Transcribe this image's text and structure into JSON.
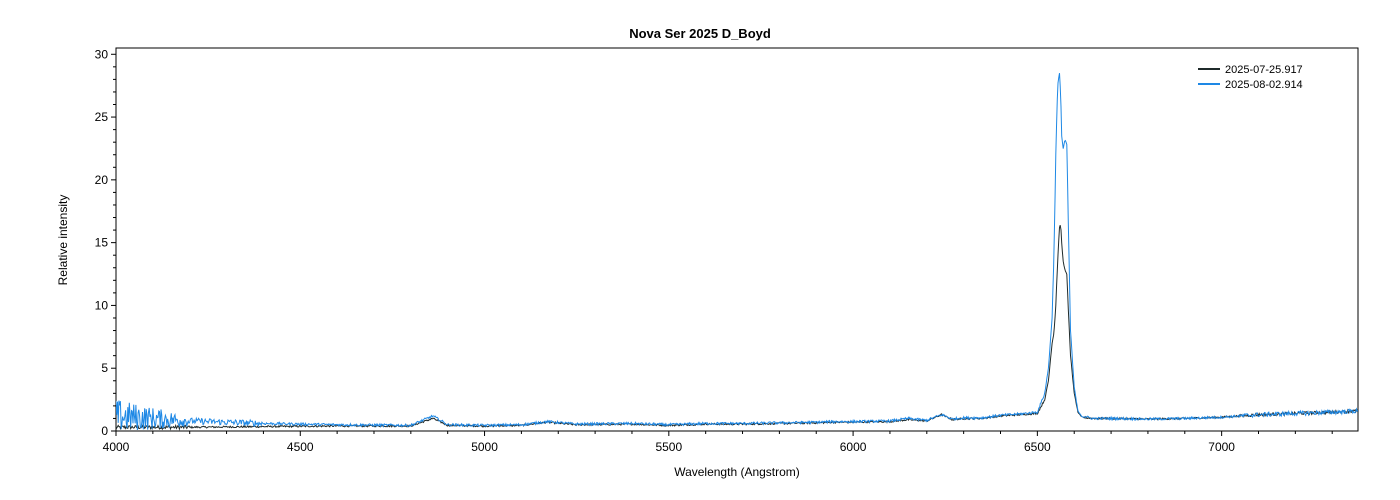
{
  "chart_data": {
    "type": "line",
    "title": "Nova Ser 2025   D_Boyd",
    "xlabel": "Wavelength (Angstrom)",
    "ylabel": "Relative intensity",
    "xlim": [
      4000,
      7370
    ],
    "ylim": [
      0,
      30.5
    ],
    "xticks": [
      4000,
      4500,
      5000,
      5500,
      6000,
      6500,
      7000
    ],
    "yticks": [
      0,
      5,
      10,
      15,
      20,
      25,
      30
    ],
    "grid": false,
    "legend_position": "top-right",
    "series": [
      {
        "name": "2025-07-25.917",
        "color": "#1f2a2a",
        "x": [
          4000,
          4200,
          4400,
          4600,
          4800,
          4860,
          4900,
          5000,
          5100,
          5170,
          5250,
          5400,
          5500,
          5600,
          5700,
          5800,
          5900,
          5950,
          6000,
          6100,
          6150,
          6200,
          6240,
          6270,
          6300,
          6350,
          6400,
          6450,
          6500,
          6520,
          6530,
          6540,
          6545,
          6550,
          6555,
          6560,
          6563,
          6566,
          6570,
          6575,
          6580,
          6585,
          6590,
          6600,
          6610,
          6620,
          6650,
          6700,
          6800,
          6900,
          7000,
          7100,
          7200,
          7300,
          7370
        ],
        "y": [
          0.3,
          0.3,
          0.35,
          0.4,
          0.4,
          1.0,
          0.45,
          0.4,
          0.45,
          0.7,
          0.5,
          0.55,
          0.45,
          0.55,
          0.55,
          0.6,
          0.65,
          0.7,
          0.7,
          0.75,
          0.9,
          0.8,
          1.3,
          0.9,
          1.0,
          1.0,
          1.2,
          1.3,
          1.4,
          2.5,
          4.0,
          7.0,
          7.8,
          10.0,
          13.5,
          16.2,
          16.5,
          15.0,
          13.5,
          12.8,
          12.5,
          9.0,
          6.0,
          3.0,
          1.5,
          1.1,
          1.0,
          1.0,
          0.95,
          1.0,
          1.1,
          1.3,
          1.4,
          1.5,
          1.6
        ]
      },
      {
        "name": "2025-08-02.914",
        "color": "#1e88e5",
        "x": [
          4000,
          4200,
          4400,
          4600,
          4800,
          4860,
          4900,
          5000,
          5100,
          5170,
          5250,
          5400,
          5500,
          5600,
          5700,
          5800,
          5900,
          5950,
          6000,
          6100,
          6150,
          6200,
          6240,
          6270,
          6300,
          6350,
          6400,
          6450,
          6500,
          6520,
          6530,
          6540,
          6545,
          6550,
          6555,
          6560,
          6563,
          6566,
          6570,
          6575,
          6580,
          6585,
          6590,
          6600,
          6610,
          6620,
          6650,
          6700,
          6800,
          6900,
          7000,
          7100,
          7200,
          7300,
          7370
        ],
        "y": [
          1.2,
          0.8,
          0.6,
          0.5,
          0.45,
          1.2,
          0.5,
          0.45,
          0.5,
          0.75,
          0.55,
          0.6,
          0.5,
          0.6,
          0.6,
          0.65,
          0.7,
          0.75,
          0.75,
          0.8,
          1.0,
          0.85,
          1.3,
          0.95,
          1.05,
          1.05,
          1.25,
          1.35,
          1.5,
          3.0,
          5.0,
          9.0,
          14.0,
          22.0,
          27.5,
          28.5,
          27.0,
          23.5,
          22.5,
          23.2,
          22.8,
          15.0,
          8.0,
          3.5,
          1.6,
          1.2,
          1.0,
          1.0,
          0.95,
          1.0,
          1.1,
          1.3,
          1.4,
          1.5,
          1.6
        ]
      }
    ]
  }
}
